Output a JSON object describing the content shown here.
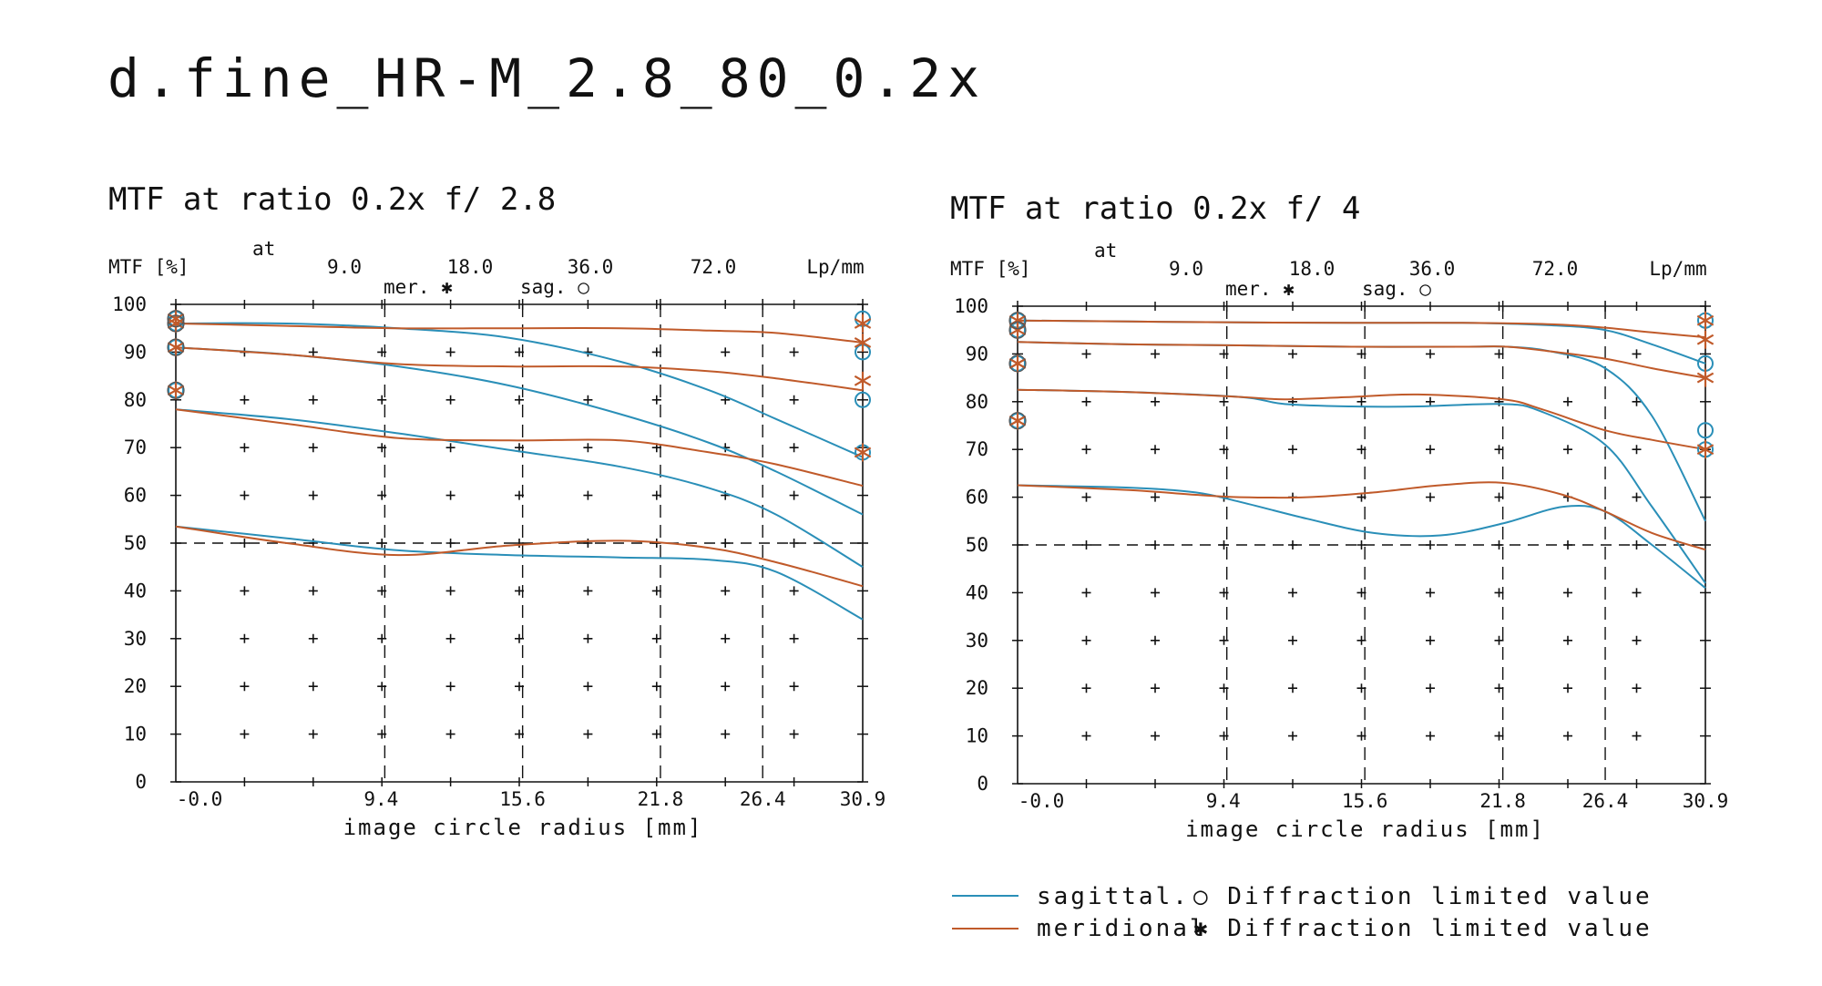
{
  "title": "d.fine_HR-M_2.8_80_0.2x",
  "chart_data": [
    {
      "type": "line",
      "title": "MTF at ratio 0.2x    f/ 2.8",
      "ylabel": "MTF [%]",
      "at_label": "at",
      "freq_unit": "Lp/mm",
      "freq_labels": [
        "9.0",
        "18.0",
        "36.0",
        "72.0"
      ],
      "mer_label": "mer. ✱",
      "sag_label": "sag. ○",
      "xlabel": "image circle radius [mm]",
      "xlim": [
        0,
        30.9
      ],
      "ylim": [
        0,
        100
      ],
      "y_ticks": [
        0,
        10,
        20,
        30,
        40,
        50,
        60,
        70,
        80,
        90,
        100
      ],
      "x_tick_labels": [
        "-0.0",
        "9.4",
        "15.6",
        "21.8",
        "26.4",
        "30.9"
      ],
      "x_tick_values": [
        0,
        9.4,
        15.6,
        21.8,
        26.4,
        30.9
      ],
      "reference_line_y": 50,
      "series": [
        {
          "name": "sagittal",
          "color": "#2a8fb8",
          "x": [
            0,
            5,
            10,
            15,
            20,
            24,
            27,
            30.9
          ],
          "y": [
            96,
            96,
            95,
            93,
            88,
            82,
            76,
            68
          ]
        },
        {
          "name": "meridional",
          "color": "#c05a2a",
          "x": [
            0,
            5,
            10,
            15,
            20,
            24,
            27,
            30.9
          ],
          "y": [
            96,
            95.5,
            95,
            95,
            95,
            94.5,
            94,
            92
          ]
        },
        {
          "name": "sagittal",
          "color": "#2a8fb8",
          "x": [
            0,
            5,
            10,
            15,
            20,
            24,
            27,
            30.9
          ],
          "y": [
            91,
            89.5,
            87,
            83,
            77,
            71,
            65,
            56
          ]
        },
        {
          "name": "meridional",
          "color": "#c05a2a",
          "x": [
            0,
            5,
            10,
            15,
            20,
            24,
            27,
            30.9
          ],
          "y": [
            91,
            89.5,
            87.5,
            87,
            87,
            86,
            84.5,
            82
          ]
        },
        {
          "name": "sagittal",
          "color": "#2a8fb8",
          "x": [
            0,
            5,
            10,
            15,
            20,
            24,
            27,
            30.9
          ],
          "y": [
            78,
            76,
            73,
            69.5,
            66,
            61.5,
            56,
            45
          ]
        },
        {
          "name": "meridional",
          "color": "#c05a2a",
          "x": [
            0,
            5,
            10,
            15,
            20,
            24,
            27,
            30.9
          ],
          "y": [
            78,
            75,
            72,
            71.5,
            71.5,
            69,
            66.5,
            62
          ]
        },
        {
          "name": "sagittal",
          "color": "#2a8fb8",
          "x": [
            0,
            5,
            10,
            15,
            20,
            24,
            27,
            30.9
          ],
          "y": [
            53.5,
            51,
            48.5,
            47.5,
            47,
            46.5,
            44,
            34
          ]
        },
        {
          "name": "meridional",
          "color": "#c05a2a",
          "x": [
            0,
            5,
            10,
            15,
            20,
            24,
            27,
            30.9
          ],
          "y": [
            53.5,
            50,
            47.5,
            49.5,
            50.5,
            49,
            46,
            41
          ]
        }
      ],
      "diffraction_limits": {
        "left": {
          "sagittal": [
            97,
            96,
            91,
            82
          ],
          "meridional": [
            97,
            96,
            91,
            82
          ]
        },
        "right": {
          "sagittal": [
            97,
            90,
            80,
            69
          ],
          "meridional": [
            96,
            92,
            84,
            69
          ]
        }
      }
    },
    {
      "type": "line",
      "title": "MTF at ratio 0.2x    f/ 4",
      "ylabel": "MTF [%]",
      "at_label": "at",
      "freq_unit": "Lp/mm",
      "freq_labels": [
        "9.0",
        "18.0",
        "36.0",
        "72.0"
      ],
      "mer_label": "mer. ✱",
      "sag_label": "sag. ○",
      "xlabel": "image circle radius [mm]",
      "xlim": [
        0,
        30.9
      ],
      "ylim": [
        0,
        100
      ],
      "y_ticks": [
        0,
        10,
        20,
        30,
        40,
        50,
        60,
        70,
        80,
        90,
        100
      ],
      "x_tick_labels": [
        "-0.0",
        "9.4",
        "15.6",
        "21.8",
        "26.4",
        "30.9"
      ],
      "x_tick_values": [
        0,
        9.4,
        15.6,
        21.8,
        26.4,
        30.9
      ],
      "reference_line_y": 50,
      "series": [
        {
          "name": "sagittal",
          "color": "#2a8fb8",
          "x": [
            0,
            5,
            10,
            15,
            20,
            24,
            26.4,
            28.5,
            30.9
          ],
          "y": [
            97,
            96.8,
            96.6,
            96.5,
            96.5,
            96,
            95,
            92,
            88
          ]
        },
        {
          "name": "meridional",
          "color": "#c05a2a",
          "x": [
            0,
            5,
            10,
            15,
            20,
            24,
            26.4,
            28.5,
            30.9
          ],
          "y": [
            97,
            96.8,
            96.6,
            96.5,
            96.5,
            96.2,
            95.5,
            94.5,
            93.5
          ]
        },
        {
          "name": "sagittal",
          "color": "#2a8fb8",
          "x": [
            0,
            5,
            10,
            15,
            20,
            22,
            24,
            26.4,
            28.5,
            30.9
          ],
          "y": [
            92.5,
            92,
            91.8,
            91.5,
            91.5,
            91.5,
            90.5,
            87,
            77,
            55
          ]
        },
        {
          "name": "meridional",
          "color": "#c05a2a",
          "x": [
            0,
            5,
            10,
            15,
            20,
            22,
            24,
            26.4,
            28.5,
            30.9
          ],
          "y": [
            92.5,
            92,
            91.8,
            91.5,
            91.5,
            91.5,
            90.5,
            89,
            87,
            85
          ]
        },
        {
          "name": "sagittal",
          "color": "#2a8fb8",
          "x": [
            0,
            5,
            10,
            12,
            15,
            18,
            21.8,
            23.5,
            26.4,
            28.5,
            30.9
          ],
          "y": [
            82.5,
            82,
            81,
            79.5,
            79,
            79,
            79.5,
            78,
            71,
            58,
            42
          ]
        },
        {
          "name": "meridional",
          "color": "#c05a2a",
          "x": [
            0,
            5,
            10,
            12,
            15,
            18,
            21.8,
            23.5,
            26.4,
            28.5,
            30.9
          ],
          "y": [
            82.5,
            82,
            81,
            80.5,
            81,
            81.5,
            80.5,
            78.5,
            74,
            72,
            70
          ]
        },
        {
          "name": "sagittal",
          "color": "#2a8fb8",
          "x": [
            0,
            5,
            8,
            10,
            13,
            16,
            19,
            21.8,
            24.5,
            26.4,
            28.5,
            30.9
          ],
          "y": [
            62.5,
            62,
            61,
            59,
            55.5,
            52.5,
            52,
            54.5,
            58,
            57,
            50,
            41
          ]
        },
        {
          "name": "meridional",
          "color": "#c05a2a",
          "x": [
            0,
            5,
            8,
            10,
            13,
            16,
            19,
            21.8,
            24.5,
            26.4,
            28.5,
            30.9
          ],
          "y": [
            62.5,
            61.5,
            60.5,
            60,
            60,
            61,
            62.5,
            63,
            60.5,
            57,
            52.5,
            49
          ]
        }
      ],
      "diffraction_limits": {
        "left": {
          "sagittal": [
            97,
            95,
            88,
            76
          ],
          "meridional": [
            97,
            95,
            88,
            76
          ]
        },
        "right": {
          "sagittal": [
            97,
            88,
            74,
            70
          ],
          "meridional": [
            97,
            93,
            85,
            70
          ]
        }
      }
    }
  ],
  "legend": {
    "sagittal_label": "sagittal.",
    "meridional_label": "meridional",
    "sagittal_limit": "○ Diffraction limited value",
    "meridional_limit": "✱ Diffraction limited value",
    "sagittal_color": "#2a8fb8",
    "meridional_color": "#c05a2a"
  }
}
